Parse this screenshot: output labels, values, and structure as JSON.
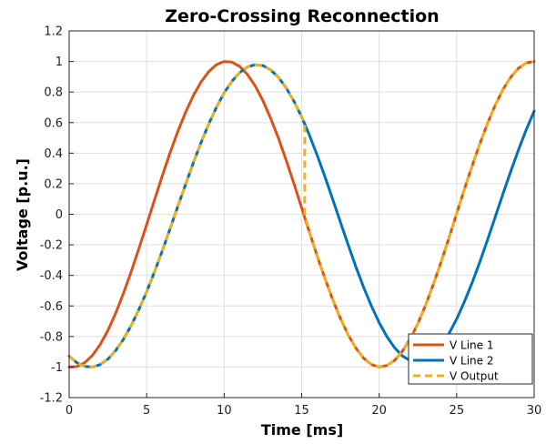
{
  "chart_data": {
    "type": "line",
    "title": "Zero-Crossing Reconnection",
    "xlabel": "Time [ms]",
    "ylabel": "Voltage [p.u.]",
    "xlim": [
      0,
      30
    ],
    "ylim": [
      -1.2,
      1.2
    ],
    "xticks": [
      0,
      5,
      10,
      15,
      20,
      25,
      30
    ],
    "xtick_labels": [
      "0",
      "5",
      "10",
      "15",
      "20",
      "25",
      "30"
    ],
    "yticks": [
      -1.2,
      -1,
      -0.8,
      -0.6,
      -0.4,
      -0.2,
      0,
      0.2,
      0.4,
      0.6,
      0.8,
      1,
      1.2
    ],
    "ytick_labels": [
      "-1.2",
      "-1",
      "-0.8",
      "-0.6",
      "-0.4",
      "-0.2",
      "0",
      "0.2",
      "0.4",
      "0.6",
      "0.8",
      "1",
      "1.2"
    ],
    "grid": true,
    "legend_position": "bottom-right",
    "series": [
      {
        "name": "V Line 1",
        "color": "#d95319",
        "style": "solid",
        "x": [
          0,
          0.5,
          1,
          1.5,
          2,
          2.5,
          3,
          3.5,
          4,
          4.5,
          5,
          5.5,
          6,
          6.5,
          7,
          7.5,
          8,
          8.5,
          9,
          9.5,
          10,
          10.5,
          11,
          11.5,
          12,
          12.5,
          13,
          13.5,
          14,
          14.5,
          15,
          15.5,
          16,
          16.5,
          17,
          17.5,
          18,
          18.5,
          19,
          19.5,
          20,
          20.5,
          21,
          21.5,
          22,
          22.5,
          23,
          23.5,
          24,
          24.5,
          25,
          25.5,
          26,
          26.5,
          27,
          27.5,
          28,
          28.5,
          29,
          29.5,
          30
        ],
        "y": [
          -1.0,
          -0.997,
          -0.972,
          -0.924,
          -0.853,
          -0.76,
          -0.648,
          -0.519,
          -0.377,
          -0.225,
          -0.067,
          0.092,
          0.249,
          0.399,
          0.539,
          0.665,
          0.775,
          0.865,
          0.934,
          0.979,
          1.0,
          0.996,
          0.968,
          0.915,
          0.84,
          0.744,
          0.629,
          0.498,
          0.354,
          0.201,
          0.042,
          -0.117,
          -0.272,
          -0.42,
          -0.558,
          -0.682,
          -0.789,
          -0.876,
          -0.942,
          -0.984,
          -1.0,
          -0.99,
          -0.956,
          -0.897,
          -0.816,
          -0.714,
          -0.593,
          -0.458,
          -0.311,
          -0.156,
          0.004,
          0.163,
          0.318,
          0.463,
          0.597,
          0.717,
          0.819,
          0.899,
          0.957,
          0.991,
          1.0
        ]
      },
      {
        "name": "V Line 2",
        "color": "#0072bd",
        "style": "solid",
        "x": [
          0,
          0.5,
          1,
          1.5,
          2,
          2.5,
          3,
          3.5,
          4,
          4.5,
          5,
          5.5,
          6,
          6.5,
          7,
          7.5,
          8,
          8.5,
          9,
          9.5,
          10,
          10.5,
          11,
          11.5,
          12,
          12.5,
          13,
          13.5,
          14,
          14.5,
          15,
          15.5,
          16,
          16.5,
          17,
          17.5,
          18,
          18.5,
          19,
          19.5,
          20,
          20.5,
          21,
          21.5,
          22,
          22.5,
          23,
          23.5,
          24,
          24.5,
          25,
          25.5,
          26,
          26.5,
          27,
          27.5,
          28,
          28.5,
          29,
          29.5,
          30
        ],
        "y": [
          -0.929,
          -0.972,
          -0.996,
          -1.0,
          -0.984,
          -0.948,
          -0.892,
          -0.819,
          -0.729,
          -0.624,
          -0.507,
          -0.378,
          -0.241,
          -0.098,
          0.048,
          0.193,
          0.334,
          0.467,
          0.59,
          0.7,
          0.794,
          0.87,
          0.927,
          0.964,
          0.979,
          0.973,
          0.945,
          0.896,
          0.827,
          0.74,
          0.637,
          0.518,
          0.387,
          0.246,
          0.098,
          -0.052,
          -0.2,
          -0.344,
          -0.478,
          -0.601,
          -0.709,
          -0.801,
          -0.874,
          -0.927,
          -0.958,
          -0.967,
          -0.953,
          -0.917,
          -0.86,
          -0.782,
          -0.686,
          -0.573,
          -0.447,
          -0.31,
          -0.165,
          -0.014,
          0.137,
          0.284,
          0.425,
          0.556,
          0.675
        ]
      },
      {
        "name": "V Output",
        "color": "#edb120",
        "style": "dashed",
        "x": [
          0,
          0.5,
          1,
          1.5,
          2,
          2.5,
          3,
          3.5,
          4,
          4.5,
          5,
          5.5,
          6,
          6.5,
          7,
          7.5,
          8,
          8.5,
          9,
          9.5,
          10,
          10.5,
          11,
          11.5,
          12,
          12.5,
          13,
          13.5,
          14,
          14.5,
          15,
          15.2,
          15.2,
          15.5,
          16,
          16.5,
          17,
          17.5,
          18,
          18.5,
          19,
          19.5,
          20,
          20.5,
          21,
          21.5,
          22,
          22.5,
          23,
          23.5,
          24,
          24.5,
          25,
          25.5,
          26,
          26.5,
          27,
          27.5,
          28,
          28.5,
          29,
          29.5,
          30
        ],
        "y": [
          -0.929,
          -0.972,
          -0.996,
          -1.0,
          -0.984,
          -0.948,
          -0.892,
          -0.819,
          -0.729,
          -0.624,
          -0.507,
          -0.378,
          -0.241,
          -0.098,
          0.048,
          0.193,
          0.334,
          0.467,
          0.59,
          0.7,
          0.794,
          0.87,
          0.927,
          0.964,
          0.979,
          0.973,
          0.945,
          0.896,
          0.827,
          0.74,
          0.637,
          0.58,
          0.0,
          -0.117,
          -0.272,
          -0.42,
          -0.558,
          -0.682,
          -0.789,
          -0.876,
          -0.942,
          -0.984,
          -1.0,
          -0.99,
          -0.956,
          -0.897,
          -0.816,
          -0.714,
          -0.593,
          -0.458,
          -0.311,
          -0.156,
          0.004,
          0.163,
          0.318,
          0.463,
          0.597,
          0.717,
          0.819,
          0.899,
          0.957,
          0.991,
          1.0
        ]
      }
    ]
  }
}
